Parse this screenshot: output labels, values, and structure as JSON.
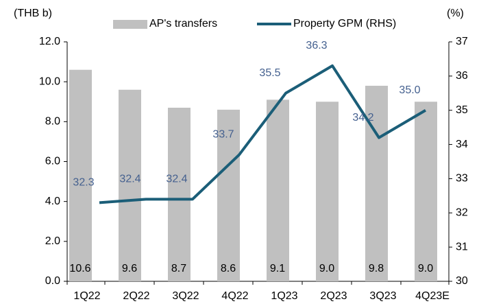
{
  "chart_data": {
    "type": "bar",
    "y_label": "(THB b)",
    "y2_label": "(%)",
    "categories": [
      "1Q22",
      "2Q22",
      "3Q22",
      "4Q22",
      "1Q23",
      "2Q23",
      "3Q23",
      "4Q23E"
    ],
    "series": [
      {
        "name": "AP's transfers",
        "type": "bar",
        "color": "#c0c0c0",
        "values": [
          10.6,
          9.6,
          8.7,
          8.6,
          9.1,
          9.0,
          9.8,
          9.0
        ],
        "value_labels": [
          "10.6",
          "9.6",
          "8.7",
          "8.6",
          "9.1",
          "9.0",
          "9.8",
          "9.0"
        ]
      },
      {
        "name": "Property GPM (RHS)",
        "type": "line",
        "axis": "y2",
        "color": "#1b5e78",
        "values": [
          32.3,
          32.4,
          32.4,
          33.7,
          35.5,
          36.3,
          34.2,
          35.0
        ],
        "value_labels": [
          "32.3",
          "32.4",
          "32.4",
          "33.7",
          "35.5",
          "36.3",
          "34.2",
          "35.0"
        ]
      }
    ],
    "ylim": [
      0,
      12
    ],
    "yticks": [
      {
        "value": 0,
        "label": "0.0"
      },
      {
        "value": 2,
        "label": "2.0"
      },
      {
        "value": 4,
        "label": "4.0"
      },
      {
        "value": 6,
        "label": "6.0"
      },
      {
        "value": 8,
        "label": "8.0"
      },
      {
        "value": 10,
        "label": "10.0"
      },
      {
        "value": 12,
        "label": "12.0"
      }
    ],
    "y2lim": [
      30,
      37
    ],
    "y2ticks": [
      30,
      31,
      32,
      33,
      34,
      35,
      36,
      37
    ],
    "legend": "top"
  }
}
